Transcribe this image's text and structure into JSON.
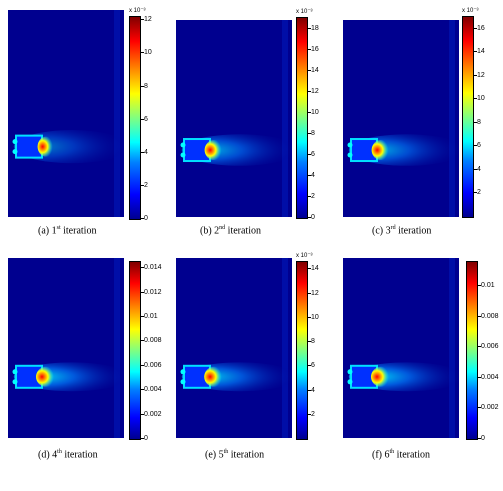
{
  "panels": [
    {
      "prefix": "(a) 1",
      "sup": "st",
      "suffix": " iteration",
      "exponent": "x 10⁻³",
      "ticks": [
        "12",
        "10",
        "8",
        "6",
        "4",
        "2",
        "0"
      ],
      "tickvals": [
        12,
        10,
        8,
        6,
        4,
        2,
        0
      ],
      "max": 12.2
    },
    {
      "prefix": "(b) 2",
      "sup": "nd",
      "suffix": " iteration",
      "exponent": "x 10⁻³",
      "ticks": [
        "18",
        "16",
        "14",
        "12",
        "10",
        "8",
        "6",
        "4",
        "2",
        "0"
      ],
      "tickvals": [
        18,
        16,
        14,
        12,
        10,
        8,
        6,
        4,
        2,
        0
      ],
      "max": 19
    },
    {
      "prefix": "(c) 3",
      "sup": "rd",
      "suffix": " iteration",
      "exponent": "x 10⁻³",
      "ticks": [
        "16",
        "14",
        "12",
        "10",
        "8",
        "6",
        "4",
        "2"
      ],
      "tickvals": [
        16,
        14,
        12,
        10,
        8,
        6,
        4,
        2
      ],
      "max": 17
    },
    {
      "prefix": "(d) 4",
      "sup": "th",
      "suffix": " iteration",
      "exponent": "",
      "ticks": [
        "0.014",
        "0.012",
        "0.01",
        "0.008",
        "0.006",
        "0.004",
        "0.002",
        "0"
      ],
      "tickvals": [
        0.014,
        0.012,
        0.01,
        0.008,
        0.006,
        0.004,
        0.002,
        0
      ],
      "max": 0.0145
    },
    {
      "prefix": "(e) 5",
      "sup": "th",
      "suffix": " iteration",
      "exponent": "x 10⁻³",
      "ticks": [
        "14",
        "12",
        "10",
        "8",
        "6",
        "4",
        "2"
      ],
      "tickvals": [
        14,
        12,
        10,
        8,
        6,
        4,
        2
      ],
      "max": 14.6
    },
    {
      "prefix": "(f) 6",
      "sup": "th",
      "suffix": " iteration",
      "exponent": "",
      "ticks": [
        "0.01",
        "0.008",
        "0.006",
        "0.004",
        "0.002",
        "0"
      ],
      "tickvals": [
        0.01,
        0.008,
        0.006,
        0.004,
        0.002,
        0
      ],
      "max": 0.0116
    }
  ],
  "colors": {
    "background": "#00008f",
    "hot": "#ff0000",
    "warm": "#ffff00",
    "cool": "#00ffff",
    "mid": "#0080ff"
  }
}
